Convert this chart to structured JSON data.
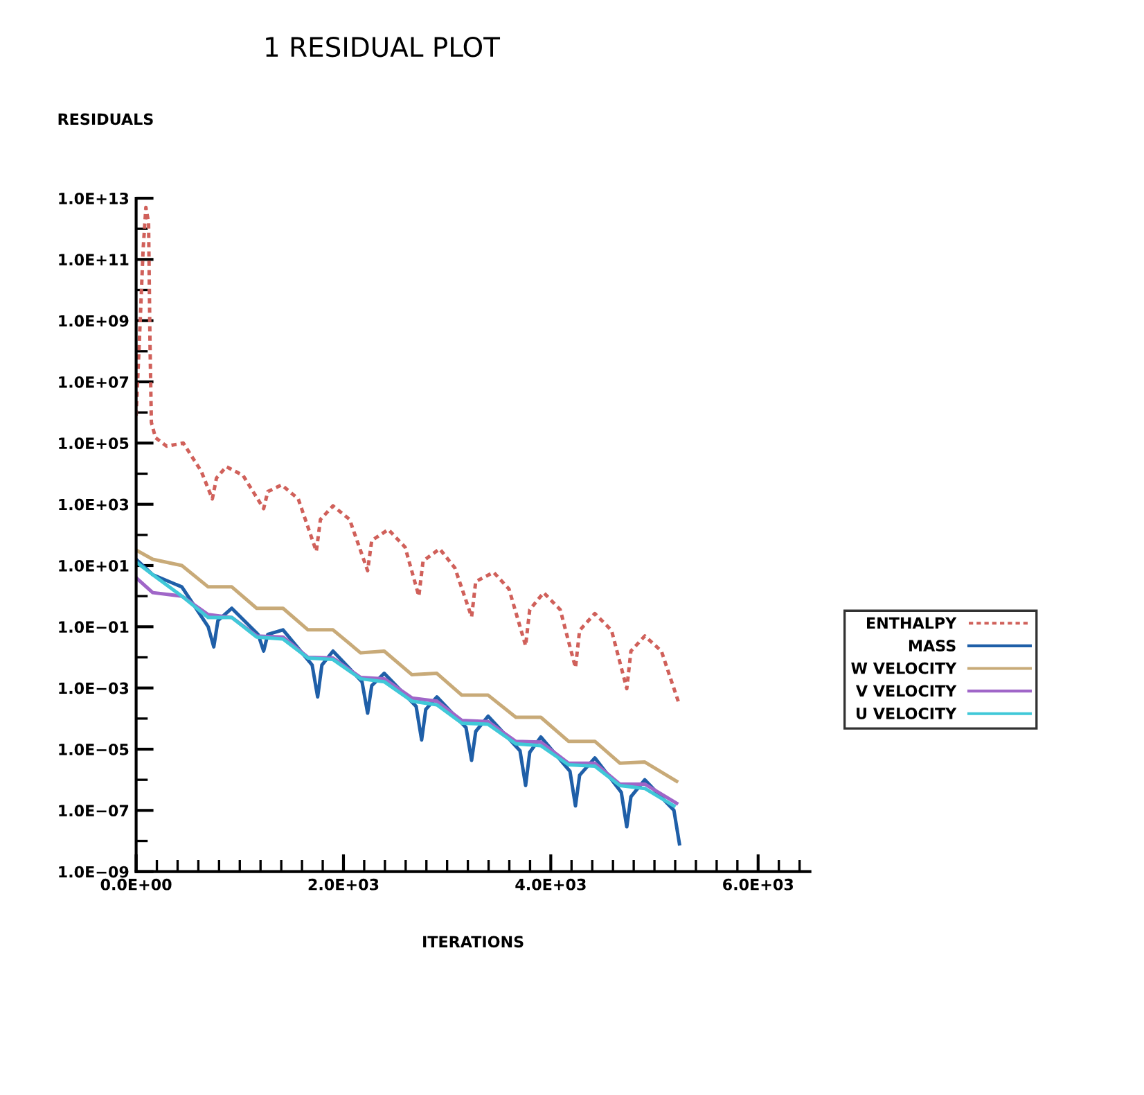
{
  "chart_data": {
    "type": "line",
    "title": "1 RESIDUAL PLOT",
    "ylabel": "RESIDUALS",
    "xlabel": "ITERATIONS",
    "log": "y",
    "grid": false,
    "legend": "right",
    "marker": "none",
    "xlim": [
      0,
      6500
    ],
    "ylim": [
      1e-09,
      10000000000000.0
    ],
    "xticks": [
      {
        "value": 0,
        "label": "0.0E+00"
      },
      {
        "value": 200,
        "label": null
      },
      {
        "value": 400,
        "label": null
      },
      {
        "value": 600,
        "label": null
      },
      {
        "value": 800,
        "label": null
      },
      {
        "value": 1000,
        "label": null
      },
      {
        "value": 1200,
        "label": null
      },
      {
        "value": 1400,
        "label": null
      },
      {
        "value": 1600,
        "label": null
      },
      {
        "value": 1800,
        "label": null
      },
      {
        "value": 2000,
        "label": "2.0E+03"
      },
      {
        "value": 2200,
        "label": null
      },
      {
        "value": 2400,
        "label": null
      },
      {
        "value": 2600,
        "label": null
      },
      {
        "value": 2800,
        "label": null
      },
      {
        "value": 3000,
        "label": null
      },
      {
        "value": 3200,
        "label": null
      },
      {
        "value": 3400,
        "label": null
      },
      {
        "value": 3600,
        "label": null
      },
      {
        "value": 3800,
        "label": null
      },
      {
        "value": 4000,
        "label": "4.0E+03"
      },
      {
        "value": 4200,
        "label": null
      },
      {
        "value": 4400,
        "label": null
      },
      {
        "value": 4600,
        "label": null
      },
      {
        "value": 4800,
        "label": null
      },
      {
        "value": 5000,
        "label": null
      },
      {
        "value": 5200,
        "label": null
      },
      {
        "value": 5400,
        "label": null
      },
      {
        "value": 5600,
        "label": null
      },
      {
        "value": 5800,
        "label": null
      },
      {
        "value": 6000,
        "label": "6.0E+03"
      },
      {
        "value": 6200,
        "label": null
      },
      {
        "value": 6400,
        "label": null
      }
    ],
    "yticks": [
      {
        "value": 10000000000000.0,
        "label": "1.0E+13"
      },
      {
        "value": 1000000000000.0,
        "label": null
      },
      {
        "value": 100000000000.0,
        "label": "1.0E+11"
      },
      {
        "value": 10000000000.0,
        "label": null
      },
      {
        "value": 1000000000.0,
        "label": "1.0E+09"
      },
      {
        "value": 100000000.0,
        "label": null
      },
      {
        "value": 10000000.0,
        "label": "1.0E+07"
      },
      {
        "value": 1000000.0,
        "label": null
      },
      {
        "value": 100000.0,
        "label": "1.0E+05"
      },
      {
        "value": 10000.0,
        "label": null
      },
      {
        "value": 1000.0,
        "label": "1.0E+03"
      },
      {
        "value": 100.0,
        "label": null
      },
      {
        "value": 10.0,
        "label": "1.0E+01"
      },
      {
        "value": 1,
        "label": null
      },
      {
        "value": 0.1,
        "label": "1.0E−01"
      },
      {
        "value": 0.01,
        "label": null
      },
      {
        "value": 0.001,
        "label": "1.0E−03"
      },
      {
        "value": 0.0001,
        "label": null
      },
      {
        "value": 1e-05,
        "label": "1.0E−05"
      },
      {
        "value": 1e-06,
        "label": null
      },
      {
        "value": 1e-07,
        "label": "1.0E−07"
      },
      {
        "value": 1e-08,
        "label": null
      },
      {
        "value": 1e-09,
        "label": "1.0E−09"
      }
    ],
    "series": [
      {
        "name": "ENTHALPY",
        "color": "#d0605a",
        "line_style": "dashed",
        "x": [
          0,
          40,
          67,
          94,
          120,
          134,
          147,
          187,
          294,
          455,
          628,
          735,
          775,
          869,
          1030,
          1230,
          1270,
          1404,
          1564,
          1738,
          1778,
          1899,
          2059,
          2233,
          2273,
          2433,
          2594,
          2727,
          2768,
          2928,
          3075,
          3236,
          3276,
          3449,
          3597,
          3757,
          3797,
          3931,
          4091,
          4238,
          4278,
          4425,
          4586,
          4733,
          4773,
          4907,
          5067,
          5241
        ],
        "values": [
          790000.0,
          1100000000.0,
          200000000000.0,
          5000000000000.0,
          1600000000000.0,
          160000000.0,
          470000.0,
          150000.0,
          79000.0,
          100000.0,
          12000.0,
          1500.0,
          7200.0,
          17000.0,
          8900.0,
          720,
          2600.0,
          4300.0,
          1500.0,
          29,
          320,
          890,
          320,
          6.8,
          66,
          150,
          40,
          1.0,
          14,
          35,
          8.3,
          0.21,
          3.0,
          6.0,
          1.7,
          0.024,
          0.36,
          1.3,
          0.36,
          0.0046,
          0.076,
          0.27,
          0.076,
          0.00095,
          0.016,
          0.05,
          0.016,
          0.00028
        ]
      },
      {
        "name": "MASS",
        "color": "#1f5fa8",
        "line_style": "solid",
        "x": [
          0,
          160,
          441,
          695,
          749,
          789,
          923,
          1177,
          1230,
          1270,
          1417,
          1698,
          1751,
          1792,
          1899,
          2179,
          2233,
          2273,
          2393,
          2701,
          2754,
          2794,
          2901,
          3182,
          3236,
          3276,
          3396,
          3703,
          3757,
          3797,
          3904,
          4185,
          4238,
          4278,
          4425,
          4680,
          4733,
          4773,
          4907,
          5188,
          5241
        ],
        "values": [
          16,
          5.0,
          2.0,
          0.1,
          0.022,
          0.16,
          0.4,
          0.056,
          0.016,
          0.056,
          0.079,
          0.0056,
          0.00051,
          0.0056,
          0.016,
          0.0016,
          0.00015,
          0.0012,
          0.003,
          0.00025,
          2e-05,
          0.0002,
          0.00051,
          5.1e-05,
          4.3e-06,
          3.8e-05,
          0.00012,
          8.9e-06,
          6.5e-07,
          7.9e-06,
          2.5e-05,
          1.9e-06,
          1.4e-07,
          1.4e-06,
          5.2e-06,
          3.9e-07,
          2.9e-08,
          2.8e-07,
          1e-06,
          1e-07,
          8.1e-09
        ]
      },
      {
        "name": "W VELOCITY",
        "color": "#c8aa78",
        "line_style": "solid",
        "x": [
          0,
          160,
          441,
          695,
          923,
          1163,
          1417,
          1658,
          1899,
          2166,
          2393,
          2661,
          2901,
          3142,
          3396,
          3663,
          3904,
          4171,
          4425,
          4666,
          4907,
          5214
        ],
        "values": [
          32,
          16,
          10,
          2.0,
          2.0,
          0.4,
          0.4,
          0.079,
          0.079,
          0.014,
          0.016,
          0.0027,
          0.003,
          0.00058,
          0.00058,
          0.00011,
          0.00011,
          1.8e-05,
          1.8e-05,
          3.5e-06,
          3.8e-06,
          8.9e-07
        ]
      },
      {
        "name": "V VELOCITY",
        "color": "#a066c8",
        "line_style": "solid",
        "x": [
          0,
          160,
          441,
          695,
          923,
          1163,
          1417,
          1658,
          1899,
          2166,
          2393,
          2661,
          2901,
          3142,
          3396,
          3663,
          3904,
          4171,
          4425,
          4666,
          4907,
          5214
        ],
        "values": [
          4.0,
          1.3,
          1.0,
          0.25,
          0.2,
          0.05,
          0.046,
          0.01,
          0.0095,
          0.0022,
          0.002,
          0.00047,
          0.00037,
          8.7e-05,
          7.9e-05,
          1.8e-05,
          1.7e-05,
          3.5e-06,
          3.5e-06,
          7.2e-07,
          7.2e-07,
          1.7e-07
        ]
      },
      {
        "name": "U VELOCITY",
        "color": "#40c8d8",
        "line_style": "solid",
        "x": [
          0,
          160,
          441,
          695,
          923,
          1163,
          1417,
          1658,
          1899,
          2166,
          2393,
          2661,
          2901,
          3142,
          3396,
          3663,
          3904,
          4171,
          4425,
          4666,
          4907,
          5188
        ],
        "values": [
          13,
          5.0,
          1.0,
          0.2,
          0.2,
          0.046,
          0.04,
          0.0095,
          0.0085,
          0.002,
          0.0016,
          0.00037,
          0.00028,
          7.1e-05,
          6.5e-05,
          1.5e-05,
          1.3e-05,
          3.1e-06,
          2.8e-06,
          6.5e-07,
          5.2e-07,
          1.4e-07
        ]
      }
    ]
  }
}
